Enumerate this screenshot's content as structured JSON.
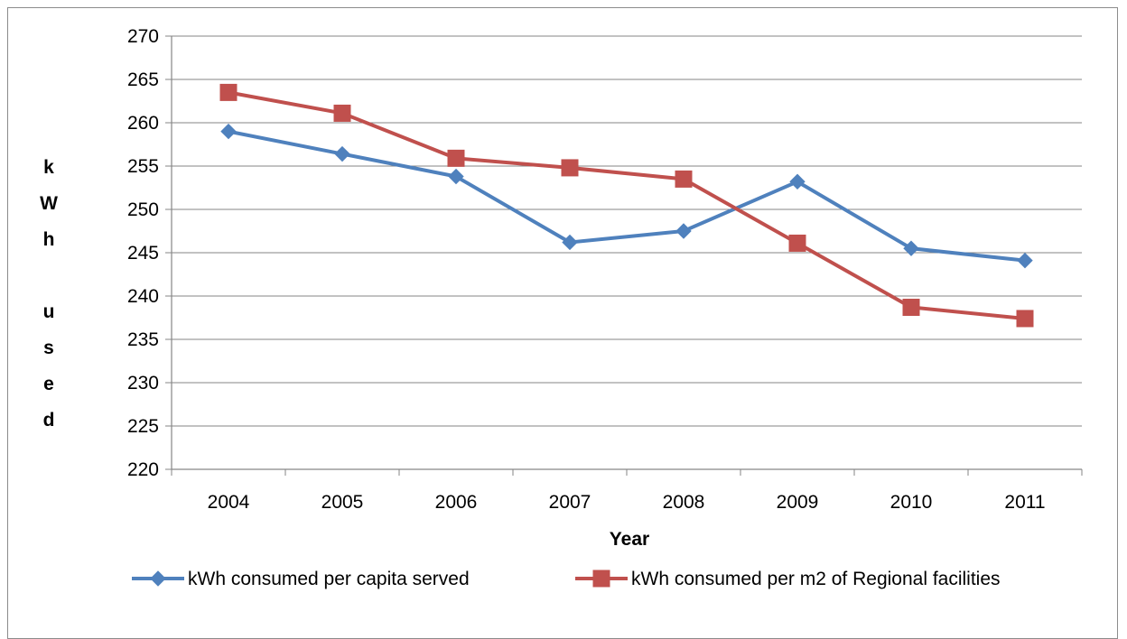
{
  "chart_data": {
    "type": "line",
    "title": "",
    "xlabel": "Year",
    "ylabel": "kWh used",
    "ylabel_letters": [
      "k",
      "W",
      "h",
      "",
      "u",
      "s",
      "e",
      "d"
    ],
    "categories": [
      "2004",
      "2005",
      "2006",
      "2007",
      "2008",
      "2009",
      "2010",
      "2011"
    ],
    "ylim": [
      220,
      270
    ],
    "yticks": [
      220,
      225,
      230,
      235,
      240,
      245,
      250,
      255,
      260,
      265,
      270
    ],
    "grid": "horizontal",
    "legend_position": "bottom",
    "series": [
      {
        "name": "kWh consumed per capita served",
        "color": "#4f81bd",
        "marker": "diamond",
        "values": [
          259.0,
          256.4,
          253.8,
          246.2,
          247.5,
          253.2,
          245.5,
          244.1
        ]
      },
      {
        "name": "kWh consumed per m2 of Regional facilities",
        "color": "#c0504d",
        "marker": "square",
        "values": [
          263.5,
          261.1,
          255.9,
          254.8,
          253.5,
          246.1,
          238.7,
          237.4
        ]
      }
    ]
  }
}
